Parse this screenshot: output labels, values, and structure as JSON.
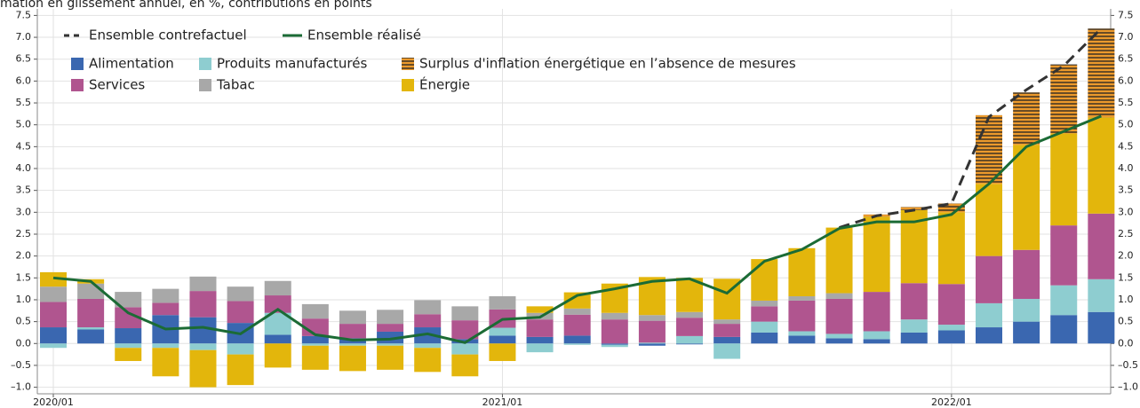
{
  "chart_data": {
    "type": "bar",
    "title": "mation en glissement annuel, en %, contributions en points",
    "categories": [
      "2020/01",
      null,
      null,
      null,
      null,
      null,
      null,
      null,
      null,
      null,
      null,
      null,
      "2021/01",
      null,
      null,
      null,
      null,
      null,
      null,
      null,
      null,
      null,
      null,
      null,
      "2022/01",
      null,
      null,
      null,
      null
    ],
    "series": [
      {
        "name": "Alimentation",
        "color": "#3a67b0",
        "values": [
          0.37,
          0.32,
          0.35,
          0.65,
          0.6,
          0.47,
          0.2,
          0.17,
          0.12,
          0.27,
          0.37,
          0.1,
          0.18,
          0.15,
          0.18,
          -0.03,
          -0.05,
          -0.02,
          0.15,
          0.25,
          0.18,
          0.12,
          0.1,
          0.25,
          0.3,
          0.37,
          0.5,
          0.65,
          0.72
        ]
      },
      {
        "name": "Produits manufacturés",
        "color": "#8ecdd0",
        "values": [
          -0.1,
          0.05,
          -0.1,
          -0.1,
          -0.15,
          -0.25,
          0.5,
          -0.05,
          -0.05,
          -0.05,
          -0.1,
          -0.25,
          0.18,
          -0.2,
          -0.03,
          -0.05,
          0.02,
          0.17,
          -0.35,
          0.25,
          0.1,
          0.1,
          0.18,
          0.3,
          0.13,
          0.55,
          0.52,
          0.68,
          0.75
        ]
      },
      {
        "name": "Services",
        "color": "#b0558f",
        "values": [
          0.58,
          0.65,
          0.48,
          0.28,
          0.6,
          0.5,
          0.4,
          0.4,
          0.33,
          0.18,
          0.3,
          0.43,
          0.42,
          0.4,
          0.48,
          0.55,
          0.5,
          0.42,
          0.3,
          0.35,
          0.7,
          0.8,
          0.9,
          0.83,
          0.93,
          1.08,
          1.12,
          1.37,
          1.5
        ]
      },
      {
        "name": "Tabac",
        "color": "#a8a8a8",
        "values": [
          0.35,
          0.35,
          0.35,
          0.32,
          0.33,
          0.33,
          0.33,
          0.33,
          0.3,
          0.32,
          0.32,
          0.32,
          0.3,
          0.15,
          0.14,
          0.15,
          0.13,
          0.13,
          0.1,
          0.13,
          0.1,
          0.13,
          0,
          0,
          0,
          0,
          0,
          0,
          0
        ]
      },
      {
        "name": "Énergie",
        "color": "#e3b60c",
        "values": [
          0.33,
          0.1,
          -0.3,
          -0.65,
          -0.85,
          -0.7,
          -0.55,
          -0.55,
          -0.58,
          -0.55,
          -0.55,
          -0.5,
          -0.4,
          0.15,
          0.37,
          0.67,
          0.87,
          0.78,
          0.93,
          0.95,
          1.1,
          1.5,
          1.72,
          1.67,
          1.64,
          1.65,
          2.4,
          2.1,
          2.2
        ]
      },
      {
        "name": "Surplus d'inflation énergétique en l’absence de mesures",
        "color": "#ec9a2c",
        "pattern": "horizontal-hatch",
        "values": [
          0,
          0,
          0,
          0,
          0,
          0,
          0,
          0,
          0,
          0,
          0,
          0,
          0,
          0,
          0,
          0,
          0,
          0,
          0,
          0,
          0,
          0,
          0.05,
          0.07,
          0.2,
          1.57,
          1.2,
          1.58,
          2.03
        ]
      }
    ],
    "lines": [
      {
        "name": "Ensemble contrefactuel",
        "color": "#333333",
        "dash": true,
        "values": [
          null,
          null,
          null,
          null,
          null,
          null,
          null,
          null,
          null,
          null,
          null,
          null,
          null,
          null,
          null,
          null,
          null,
          null,
          null,
          null,
          null,
          2.65,
          2.92,
          3.05,
          3.2,
          5.18,
          5.8,
          6.35,
          7.2
        ]
      },
      {
        "name": "Ensemble réalisé",
        "color": "#1b6b35",
        "dash": false,
        "values": [
          1.5,
          1.42,
          0.7,
          0.33,
          0.37,
          0.22,
          0.78,
          0.2,
          0.08,
          0.1,
          0.22,
          0.02,
          0.55,
          0.6,
          1.1,
          1.25,
          1.42,
          1.48,
          1.15,
          1.88,
          2.15,
          2.63,
          2.78,
          2.78,
          2.95,
          3.65,
          4.5,
          4.85,
          5.2
        ]
      }
    ],
    "ylim": [
      -1.15,
      7.65
    ],
    "yticks": [
      {
        "value": -1,
        "label": "–1.0"
      },
      {
        "value": -0.5,
        "label": "–0.5"
      },
      {
        "value": 0,
        "label": "0.0"
      },
      0.5,
      {
        "value": 1,
        "label": "1.0"
      },
      1.5,
      {
        "value": 2,
        "label": "2.0"
      },
      2.5,
      {
        "value": 3,
        "label": "3.0"
      },
      3.5,
      {
        "value": 4,
        "label": "4.0"
      },
      4.5,
      {
        "value": 5,
        "label": "5.0"
      },
      5.5,
      {
        "value": 6,
        "label": "6.0"
      },
      6.5,
      {
        "value": 7,
        "label": "7.0"
      },
      7.5
    ],
    "grid": true
  }
}
